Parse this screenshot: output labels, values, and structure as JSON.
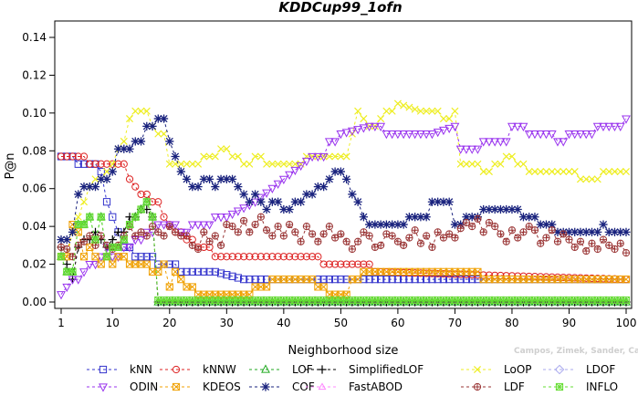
{
  "chart_data": {
    "type": "line",
    "title": "KDDCup99_1ofn",
    "xlabel": "Neighborhood size",
    "ylabel": "P@n",
    "xlim": [
      1,
      100
    ],
    "ylim": [
      0,
      0.14
    ],
    "xticks": [
      1,
      10,
      20,
      30,
      40,
      50,
      60,
      70,
      80,
      90,
      100
    ],
    "yticks": [
      0.0,
      0.02,
      0.04,
      0.06,
      0.08,
      0.1,
      0.12,
      0.14
    ],
    "ytick_labels": [
      "0.00",
      "0.02",
      "0.04",
      "0.06",
      "0.08",
      "0.10",
      "0.12",
      "0.14"
    ],
    "grid": false,
    "legend_position": "bottom",
    "watermark": "Campos, Zimek, Sander, Campello, Micenkova, Schubert, Assent, Houle: On the Evaluation of Unsupervised Outlier Detection, DAMI, 2015.",
    "series": [
      {
        "name": "kNN",
        "color": "#3333cc",
        "marker": "square",
        "x": [
          1,
          3,
          4,
          7,
          8,
          9,
          10,
          11,
          12,
          13,
          14,
          16,
          17,
          18,
          19,
          20,
          22,
          23,
          26,
          28,
          33,
          60,
          100
        ],
        "y": [
          0.077,
          0.077,
          0.073,
          0.073,
          0.069,
          0.053,
          0.045,
          0.037,
          0.029,
          0.029,
          0.024,
          0.024,
          0.024,
          0.02,
          0.02,
          0.02,
          0.016,
          0.016,
          0.016,
          0.016,
          0.012,
          0.012,
          0.012
        ]
      },
      {
        "name": "kNNW",
        "color": "#dd2222",
        "marker": "circle",
        "x": [
          1,
          4,
          5,
          6,
          7,
          12,
          13,
          14,
          15,
          16,
          17,
          18,
          19,
          20,
          21,
          22,
          23,
          24,
          25,
          27,
          28,
          29,
          30,
          34,
          35,
          40,
          41,
          42,
          44,
          45,
          47,
          49,
          55,
          56,
          100
        ],
        "y": [
          0.077,
          0.077,
          0.077,
          0.073,
          0.073,
          0.073,
          0.065,
          0.061,
          0.057,
          0.057,
          0.053,
          0.053,
          0.045,
          0.041,
          0.037,
          0.037,
          0.033,
          0.033,
          0.029,
          0.029,
          0.024,
          0.024,
          0.024,
          0.024,
          0.024,
          0.024,
          0.024,
          0.024,
          0.024,
          0.024,
          0.02,
          0.02,
          0.02,
          0.016,
          0.012
        ]
      },
      {
        "name": "LOF",
        "color": "#22aa22",
        "marker": "triangle",
        "x": [
          1,
          2,
          3,
          4,
          5,
          6,
          7,
          8,
          9,
          10,
          11,
          12,
          13,
          14,
          15,
          16,
          17,
          18,
          19,
          25,
          100
        ],
        "y": [
          0.024,
          0.016,
          0.016,
          0.041,
          0.041,
          0.045,
          0.033,
          0.045,
          0.024,
          0.029,
          0.029,
          0.033,
          0.041,
          0.045,
          0.049,
          0.053,
          0.045,
          0.0,
          0.0,
          0.0,
          0.0
        ]
      },
      {
        "name": "SimplifiedLOF",
        "color": "#000000",
        "marker": "plus",
        "x": [
          1,
          2,
          3,
          4,
          5,
          6,
          7,
          8,
          9,
          10,
          11,
          12,
          13,
          14,
          15,
          16,
          17,
          18,
          19,
          100
        ],
        "y": [
          0.029,
          0.02,
          0.012,
          0.029,
          0.033,
          0.033,
          0.037,
          0.033,
          0.029,
          0.033,
          0.037,
          0.037,
          0.045,
          0.045,
          0.049,
          0.049,
          0.045,
          0.0,
          0.0,
          0.0
        ]
      },
      {
        "name": "LoOP",
        "color": "#eeee22",
        "marker": "x",
        "x": [
          1,
          3,
          4,
          5,
          6,
          7,
          9,
          10,
          11,
          12,
          13,
          14,
          15,
          16,
          17,
          18,
          20,
          22,
          25,
          26,
          27,
          28,
          29,
          30,
          31,
          32,
          33,
          35,
          37,
          38,
          40,
          42,
          44,
          45,
          50,
          52,
          53,
          54,
          55,
          57,
          58,
          60,
          64,
          65,
          68,
          70,
          71,
          74,
          75,
          77,
          79,
          81,
          83,
          86,
          90,
          92,
          94,
          96,
          100
        ],
        "y": [
          0.024,
          0.037,
          0.045,
          0.053,
          0.061,
          0.065,
          0.069,
          0.073,
          0.081,
          0.085,
          0.097,
          0.101,
          0.101,
          0.101,
          0.093,
          0.089,
          0.073,
          0.073,
          0.073,
          0.077,
          0.077,
          0.077,
          0.081,
          0.081,
          0.077,
          0.077,
          0.073,
          0.077,
          0.073,
          0.073,
          0.073,
          0.073,
          0.077,
          0.077,
          0.077,
          0.089,
          0.101,
          0.097,
          0.093,
          0.097,
          0.101,
          0.105,
          0.101,
          0.101,
          0.097,
          0.101,
          0.073,
          0.073,
          0.069,
          0.073,
          0.077,
          0.073,
          0.069,
          0.069,
          0.069,
          0.065,
          0.065,
          0.069,
          0.069
        ]
      },
      {
        "name": "LDOF",
        "color": "#aaaaee",
        "marker": "diamond",
        "x": [],
        "y": []
      },
      {
        "name": "ODIN",
        "color": "#9933ee",
        "marker": "triangle-down",
        "x": [
          1,
          2,
          3,
          4,
          5,
          6,
          7,
          8,
          9,
          10,
          12,
          14,
          16,
          18,
          20,
          22,
          24,
          26,
          28,
          30,
          35,
          40,
          45,
          48,
          50,
          55,
          58,
          62,
          66,
          70,
          71,
          73,
          75,
          77,
          80,
          83,
          85,
          88,
          90,
          93,
          95,
          97,
          100
        ],
        "y": [
          0.004,
          0.008,
          0.012,
          0.012,
          0.016,
          0.02,
          0.02,
          0.024,
          0.029,
          0.024,
          0.029,
          0.033,
          0.037,
          0.041,
          0.041,
          0.037,
          0.041,
          0.041,
          0.045,
          0.045,
          0.053,
          0.065,
          0.077,
          0.085,
          0.089,
          0.093,
          0.089,
          0.089,
          0.089,
          0.093,
          0.081,
          0.081,
          0.085,
          0.085,
          0.093,
          0.089,
          0.089,
          0.085,
          0.089,
          0.089,
          0.093,
          0.093,
          0.097
        ]
      },
      {
        "name": "KDEOS",
        "color": "#f0a000",
        "marker": "square-x",
        "x": [
          1,
          2,
          3,
          4,
          5,
          6,
          7,
          8,
          9,
          10,
          11,
          12,
          13,
          14,
          15,
          16,
          17,
          18,
          19,
          20,
          21,
          22,
          23,
          24,
          25,
          26,
          27,
          28,
          30,
          32,
          34,
          35,
          36,
          38,
          40,
          42,
          44,
          46,
          48,
          50,
          52,
          54,
          55,
          56,
          58,
          60,
          65,
          70,
          72,
          75,
          78,
          80,
          85,
          90,
          95,
          100
        ],
        "y": [
          0.024,
          0.024,
          0.041,
          0.037,
          0.024,
          0.029,
          0.024,
          0.02,
          0.024,
          0.02,
          0.024,
          0.024,
          0.02,
          0.02,
          0.02,
          0.02,
          0.016,
          0.016,
          0.02,
          0.008,
          0.016,
          0.012,
          0.008,
          0.008,
          0.004,
          0.004,
          0.004,
          0.004,
          0.004,
          0.004,
          0.004,
          0.008,
          0.008,
          0.012,
          0.012,
          0.012,
          0.012,
          0.008,
          0.004,
          0.004,
          0.012,
          0.016,
          0.016,
          0.016,
          0.016,
          0.016,
          0.016,
          0.016,
          0.016,
          0.012,
          0.012,
          0.012,
          0.012,
          0.012,
          0.012,
          0.012
        ]
      },
      {
        "name": "COF",
        "color": "#1a237e",
        "marker": "asterisk",
        "x": [
          1,
          3,
          4,
          5,
          6,
          7,
          8,
          9,
          10,
          11,
          12,
          13,
          14,
          15,
          16,
          17,
          18,
          19,
          20,
          21,
          22,
          23,
          24,
          25,
          26,
          27,
          28,
          29,
          30,
          32,
          33,
          34,
          35,
          36,
          37,
          38,
          40,
          42,
          44,
          46,
          48,
          49,
          50,
          51,
          52,
          53,
          54,
          55,
          58,
          60,
          62,
          64,
          66,
          68,
          70,
          72,
          75,
          77,
          80,
          82,
          85,
          88,
          90,
          92,
          94,
          96,
          97,
          100
        ],
        "y": [
          0.033,
          0.037,
          0.057,
          0.061,
          0.061,
          0.061,
          0.065,
          0.065,
          0.069,
          0.081,
          0.081,
          0.081,
          0.085,
          0.085,
          0.093,
          0.093,
          0.097,
          0.097,
          0.085,
          0.077,
          0.069,
          0.065,
          0.061,
          0.061,
          0.065,
          0.065,
          0.061,
          0.065,
          0.065,
          0.061,
          0.057,
          0.053,
          0.057,
          0.053,
          0.049,
          0.053,
          0.049,
          0.053,
          0.057,
          0.061,
          0.065,
          0.069,
          0.069,
          0.065,
          0.057,
          0.053,
          0.045,
          0.041,
          0.041,
          0.041,
          0.045,
          0.045,
          0.053,
          0.053,
          0.041,
          0.045,
          0.049,
          0.049,
          0.049,
          0.045,
          0.041,
          0.037,
          0.037,
          0.037,
          0.037,
          0.041,
          0.037,
          0.037
        ]
      },
      {
        "name": "FastABOD",
        "color": "#ff88ff",
        "marker": "triangle-pink",
        "x": [],
        "y": []
      },
      {
        "name": "LDF",
        "color": "#993333",
        "marker": "circle-plus",
        "x": [
          1,
          2,
          3,
          4,
          5,
          6,
          7,
          8,
          9,
          10,
          11,
          12,
          13,
          14,
          15,
          16,
          17,
          18,
          19,
          20,
          21,
          22,
          23,
          24,
          25,
          26,
          27,
          28,
          29,
          30,
          31,
          32,
          33,
          34,
          35,
          36,
          37,
          38,
          39,
          40,
          41,
          42,
          43,
          44,
          45,
          46,
          47,
          48,
          49,
          50,
          51,
          52,
          53,
          54,
          55,
          56,
          57,
          58,
          59,
          60,
          61,
          62,
          63,
          64,
          65,
          66,
          67,
          68,
          69,
          70,
          71,
          72,
          73,
          74,
          75,
          76,
          77,
          78,
          79,
          80,
          81,
          82,
          83,
          84,
          85,
          86,
          87,
          88,
          89,
          90,
          91,
          92,
          93,
          94,
          95,
          96,
          97,
          98,
          99,
          100
        ],
        "y": [
          0.029,
          0.028,
          0.024,
          0.03,
          0.032,
          0.035,
          0.03,
          0.035,
          0.03,
          0.028,
          0.03,
          0.035,
          0.04,
          0.035,
          0.037,
          0.035,
          0.04,
          0.037,
          0.035,
          0.04,
          0.037,
          0.035,
          0.035,
          0.03,
          0.028,
          0.037,
          0.032,
          0.035,
          0.03,
          0.041,
          0.04,
          0.037,
          0.043,
          0.037,
          0.041,
          0.045,
          0.038,
          0.035,
          0.04,
          0.035,
          0.041,
          0.037,
          0.032,
          0.04,
          0.036,
          0.032,
          0.036,
          0.04,
          0.034,
          0.036,
          0.032,
          0.028,
          0.032,
          0.037,
          0.035,
          0.029,
          0.03,
          0.036,
          0.035,
          0.032,
          0.03,
          0.034,
          0.038,
          0.031,
          0.035,
          0.029,
          0.037,
          0.034,
          0.036,
          0.034,
          0.039,
          0.042,
          0.04,
          0.044,
          0.037,
          0.042,
          0.04,
          0.036,
          0.032,
          0.038,
          0.034,
          0.037,
          0.04,
          0.038,
          0.031,
          0.034,
          0.038,
          0.032,
          0.036,
          0.033,
          0.029,
          0.032,
          0.027,
          0.031,
          0.028,
          0.033,
          0.03,
          0.028,
          0.031,
          0.026
        ]
      },
      {
        "name": "INFLO",
        "color": "#66dd33",
        "marker": "square-star",
        "x": [
          1,
          2,
          3,
          4,
          5,
          6,
          7,
          8,
          9,
          10,
          11,
          12,
          13,
          14,
          15,
          16,
          17,
          18,
          19,
          20,
          30,
          40,
          50,
          60,
          70,
          80,
          90,
          100
        ],
        "y": [
          0.024,
          0.016,
          0.016,
          0.041,
          0.041,
          0.045,
          0.033,
          0.045,
          0.024,
          0.029,
          0.029,
          0.033,
          0.041,
          0.045,
          0.049,
          0.053,
          0.045,
          0.001,
          0.001,
          0.001,
          0.001,
          0.001,
          0.001,
          0.001,
          0.001,
          0.001,
          0.001,
          0.001
        ]
      }
    ]
  }
}
